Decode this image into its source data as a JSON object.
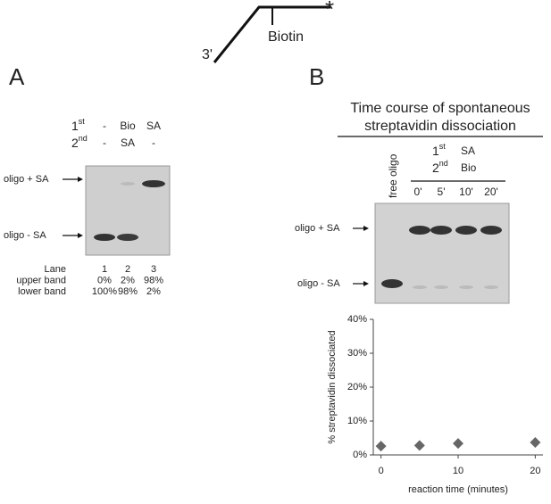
{
  "diagram": {
    "end_label": "3'",
    "biotin": "Biotin",
    "star": "*"
  },
  "panel_a": {
    "letter": "A",
    "row1": {
      "num": "1",
      "sup": "st",
      "cells": [
        "-",
        "Bio",
        "SA"
      ]
    },
    "row2": {
      "num": "2",
      "sup": "nd",
      "cells": [
        "-",
        "SA",
        "-"
      ]
    },
    "upper_label": "oligo + SA",
    "lower_label": "oligo - SA",
    "table": [
      [
        "Lane",
        "1",
        "2",
        "3"
      ],
      [
        "upper band",
        "0%",
        "2%",
        "98%"
      ],
      [
        "lower band",
        "100%",
        "98%",
        "2%"
      ]
    ]
  },
  "panel_b": {
    "letter": "B",
    "title_lines": [
      "Time course of spontaneous",
      "streptavidin dissociation"
    ],
    "free_oligo": "free oligo",
    "row1": {
      "num": "1",
      "sup": "st",
      "cell": "SA"
    },
    "row2": {
      "num": "2",
      "sup": "nd",
      "cell": "Bio"
    },
    "times": [
      "0'",
      "5'",
      "10'",
      "20'"
    ],
    "upper_label": "oligo + SA",
    "lower_label": "oligo - SA"
  },
  "chart_data": {
    "type": "scatter",
    "x_label": "reaction time (minutes)",
    "y_label": "% streptavidin dissociated",
    "x": [
      0,
      5,
      10,
      20
    ],
    "values": [
      2.6,
      2.8,
      3.4,
      3.7
    ],
    "color": "#666666",
    "xlim": [
      -1,
      21
    ],
    "xticks": [
      0,
      10,
      20
    ],
    "ylim": [
      0,
      40
    ],
    "yticks": [
      {
        "value": 0,
        "label": "0%"
      },
      {
        "value": 10,
        "label": "10%"
      },
      {
        "value": 20,
        "label": "20%"
      },
      {
        "value": 30,
        "label": "30%"
      },
      {
        "value": 40,
        "label": "40%"
      }
    ]
  }
}
